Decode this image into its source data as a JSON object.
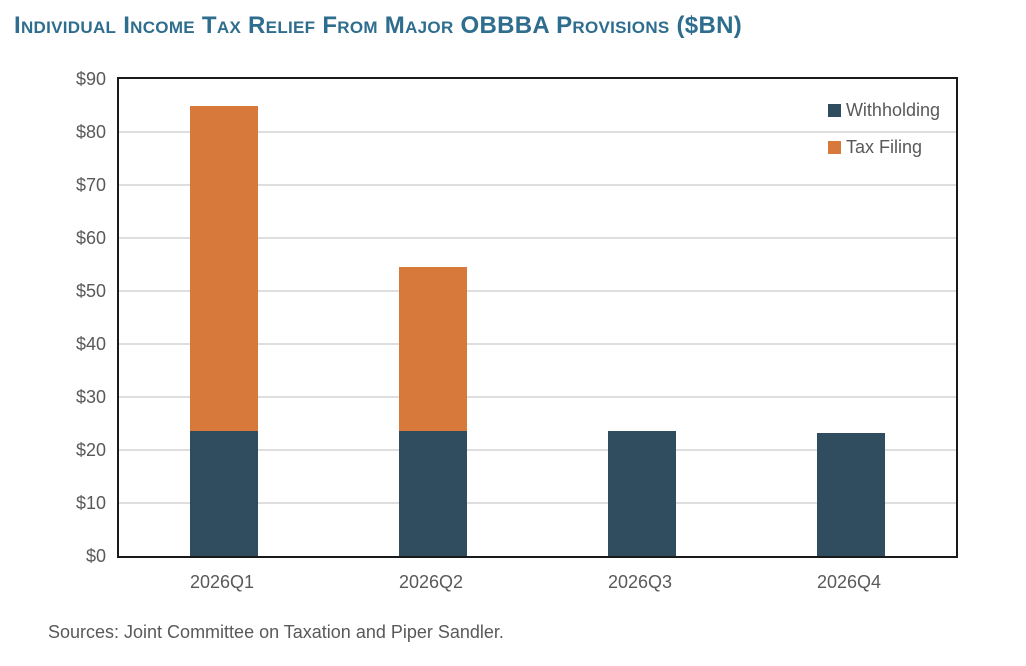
{
  "title": "Individual Income Tax Relief From Major OBBBA Provisions ($BN)",
  "source_note": "Sources: Joint Committee on Taxation and Piper Sandler.",
  "colors": {
    "withholding": "#2F4D5F",
    "tax_filing": "#D8793C",
    "title_text": "#2E6D8E",
    "axis_text": "#595959",
    "gridline": "#DEDEDE",
    "plot_border": "#1A1A1A"
  },
  "legend": [
    {
      "label": "Withholding",
      "color": "#2F4D5F"
    },
    {
      "label": "Tax Filing",
      "color": "#D8793C"
    }
  ],
  "chart_data": {
    "type": "bar",
    "stacked": true,
    "title": "Individual Income Tax Relief From Major OBBBA Provisions ($BN)",
    "categories": [
      "2026Q1",
      "2026Q2",
      "2026Q3",
      "2026Q4"
    ],
    "series": [
      {
        "name": "Withholding",
        "color": "#2F4D5F",
        "values": [
          23.5,
          23.5,
          23.5,
          23.3
        ]
      },
      {
        "name": "Tax Filing",
        "color": "#D8793C",
        "values": [
          61.3,
          31.0,
          0.0,
          0.0
        ]
      }
    ],
    "totals": [
      84.8,
      54.5,
      23.5,
      23.3
    ],
    "xlabel": "",
    "ylabel": "",
    "ylim": [
      0,
      90
    ],
    "ytick_step": 10,
    "ytick_labels": [
      "$0",
      "$10",
      "$20",
      "$30",
      "$40",
      "$50",
      "$60",
      "$70",
      "$80",
      "$90"
    ],
    "grid": true,
    "legend_position": "top-right"
  }
}
